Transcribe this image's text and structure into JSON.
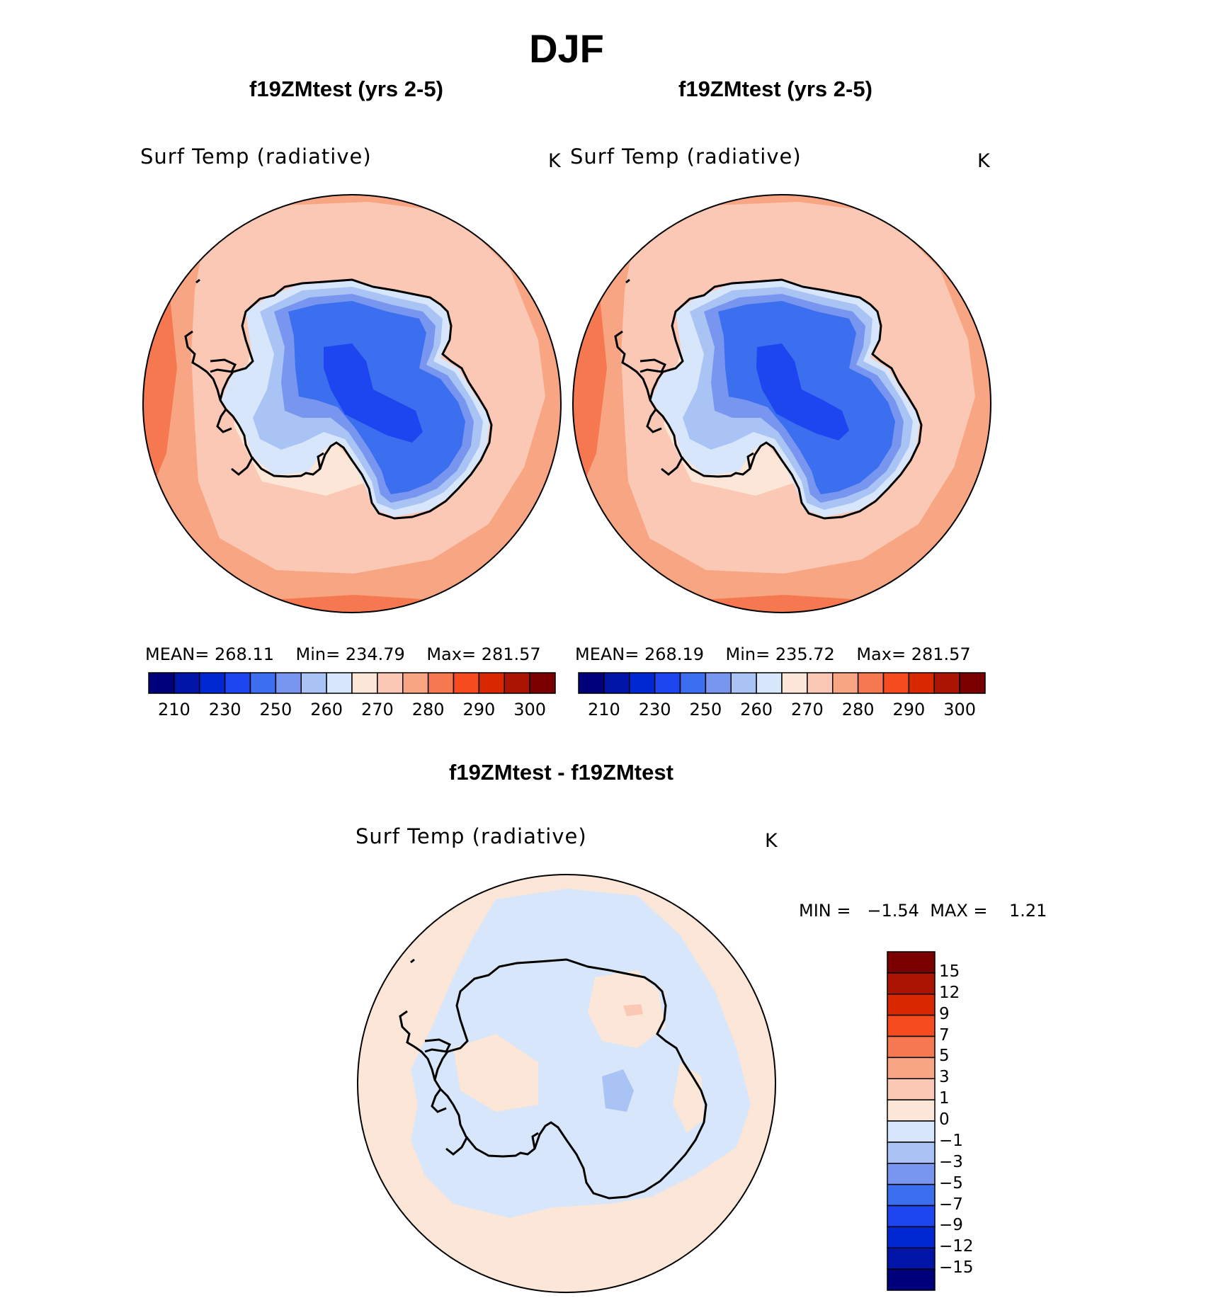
{
  "figure": {
    "title": "DJF",
    "bottom_title": "f19ZMtest - f19ZMtest"
  },
  "panels": [
    {
      "title": "f19ZMtest (yrs 2-5)",
      "variable": "Surf Temp (radiative)",
      "units": "K",
      "stats": {
        "mean_label": "MEAN=",
        "mean": "268.11",
        "min_label": "Min=",
        "min": "234.79",
        "max_label": "Max=",
        "max": "281.57"
      }
    },
    {
      "title": "f19ZMtest (yrs 2-5)",
      "variable": "Surf Temp (radiative)",
      "units": "K",
      "stats": {
        "mean_label": "MEAN=",
        "mean": "268.19",
        "min_label": "Min=",
        "min": "235.72",
        "max_label": "Max=",
        "max": "281.57"
      }
    }
  ],
  "diff_panel": {
    "variable": "Surf Temp (radiative)",
    "units": "K",
    "min_label": "MIN =",
    "min": "−1.54",
    "max_label": "MAX =",
    "max": "1.21"
  },
  "colorbar_abs": {
    "colors": [
      "#00007a",
      "#0014a8",
      "#0028d2",
      "#1e46f0",
      "#3c6ef0",
      "#7896f0",
      "#aac3f5",
      "#d7e6fa",
      "#fbe6d7",
      "#fac8b4",
      "#f7a582",
      "#f57850",
      "#f54b1e",
      "#d72800",
      "#aa1400",
      "#7a0000"
    ],
    "ticks": [
      "210",
      "230",
      "250",
      "260",
      "270",
      "280",
      "290",
      "300"
    ]
  },
  "colorbar_diff": {
    "colors": [
      "#00007a",
      "#0014a8",
      "#0028d2",
      "#1e46f0",
      "#3c6ef0",
      "#7896f0",
      "#aac3f5",
      "#d7e6fa",
      "#fbe6d7",
      "#fac8b4",
      "#f7a582",
      "#f57850",
      "#f54b1e",
      "#d72800",
      "#aa1400",
      "#7a0000"
    ],
    "ticks": [
      "15",
      "12",
      "9",
      "7",
      "5",
      "3",
      "1",
      "0",
      "−1",
      "−3",
      "−5",
      "−7",
      "−9",
      "−12",
      "−15"
    ]
  },
  "map_colors": {
    "ocean_outer": "#f7a582",
    "ocean_warm": "#f57850",
    "ocean_mid": "#fac8b4",
    "coast_pale": "#fbe6d7",
    "ice_edge": "#d7e6fa",
    "ice_1": "#aac3f5",
    "ice_2": "#7896f0",
    "ice_3": "#3c6ef0",
    "ice_core": "#1e46f0",
    "diff_pos": "#fbe6d7",
    "diff_neg": "#d7e6fa",
    "diff_neg2": "#aac3f5",
    "diff_pos2": "#fac8b4"
  }
}
